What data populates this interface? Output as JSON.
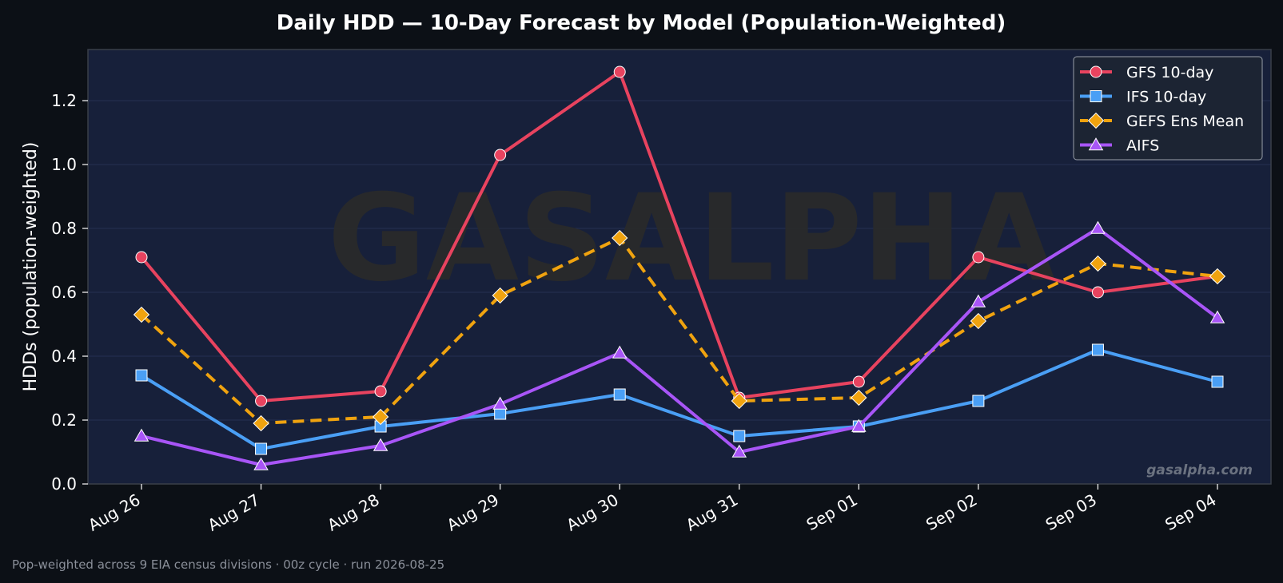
{
  "chart_data": {
    "type": "line",
    "title": "Daily HDD — 10-Day Forecast by Model (Population-Weighted)",
    "xlabel": "",
    "ylabel": "HDDs (population-weighted)",
    "categories": [
      "Aug 26",
      "Aug 27",
      "Aug 28",
      "Aug 29",
      "Aug 30",
      "Aug 31",
      "Sep 01",
      "Sep 02",
      "Sep 03",
      "Sep 04"
    ],
    "ylim": [
      0,
      1.36
    ],
    "yticks": [
      0.0,
      0.2,
      0.4,
      0.6,
      0.8,
      1.0,
      1.2
    ],
    "grid": true,
    "legend_position": "top-right",
    "series": [
      {
        "name": "GFS 10-day",
        "color": "#e8435f",
        "marker": "circle",
        "dashed": false,
        "values": [
          0.71,
          0.26,
          0.29,
          1.03,
          1.29,
          0.27,
          0.32,
          0.71,
          0.6,
          0.65
        ]
      },
      {
        "name": "IFS 10-day",
        "color": "#4a9ff5",
        "marker": "square",
        "dashed": false,
        "values": [
          0.34,
          0.11,
          0.18,
          0.22,
          0.28,
          0.15,
          0.18,
          0.26,
          0.42,
          0.32
        ]
      },
      {
        "name": "GEFS Ens Mean",
        "color": "#f0a30f",
        "marker": "diamond",
        "dashed": true,
        "values": [
          0.53,
          0.19,
          0.21,
          0.59,
          0.77,
          0.26,
          0.27,
          0.51,
          0.69,
          0.65
        ]
      },
      {
        "name": "AIFS",
        "color": "#a855f7",
        "marker": "triangle",
        "dashed": false,
        "values": [
          0.15,
          0.06,
          0.12,
          0.25,
          0.41,
          0.1,
          0.18,
          0.57,
          0.8,
          0.52
        ]
      }
    ],
    "watermark": "GASALPHA",
    "site_label": "gasalpha.com",
    "footnote": "Pop-weighted across 9 EIA census divisions  ·  00z cycle  ·  run 2026-08-25"
  },
  "colors": {
    "page_background": "#0c1016",
    "plot_background": "#17203a",
    "text": "#ffffff",
    "muted_text": "#8a8f99",
    "legend_background": "#1c2433"
  }
}
